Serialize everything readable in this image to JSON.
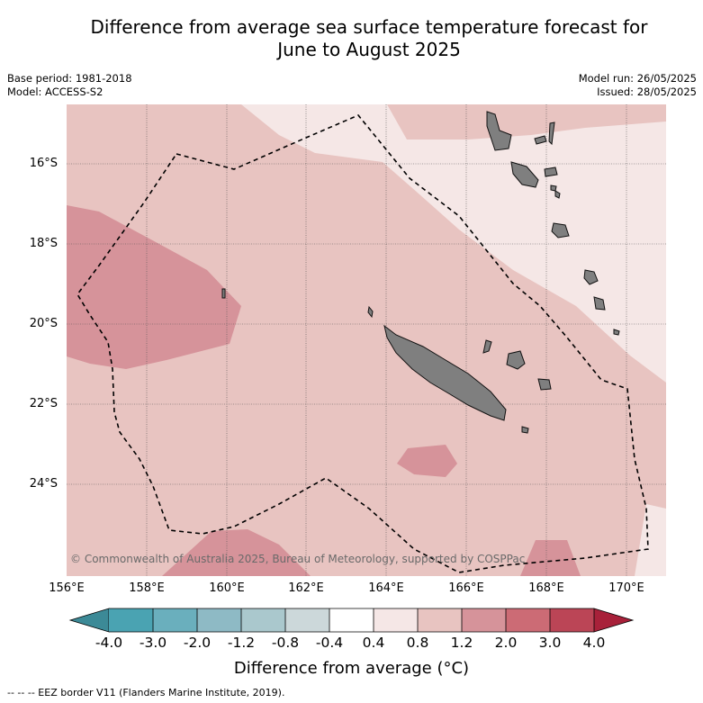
{
  "title_line1": "Difference from average sea surface temperature forecast for",
  "title_line2": "June to August 2025",
  "base_period": "Base period: 1981-2018",
  "model": "Model: ACCESS-S2",
  "model_run": "Model run: 26/05/2025",
  "issued": "Issued: 28/05/2025",
  "lat_labels": [
    "16°S",
    "18°S",
    "20°S",
    "22°S",
    "24°S"
  ],
  "lon_labels": [
    "156°E",
    "158°E",
    "160°E",
    "162°E",
    "164°E",
    "166°E",
    "168°E",
    "170°E"
  ],
  "copyright": "© Commonwealth of Australia 2025, Bureau of Meteorology, supported by COSPPac",
  "colorbar": {
    "ticks": [
      "-4.0",
      "-3.0",
      "-2.0",
      "-1.2",
      "-0.8",
      "-0.4",
      "0.4",
      "0.8",
      "1.2",
      "2.0",
      "3.0",
      "4.0"
    ],
    "title": "Difference from average (°C)",
    "colors": {
      "below_min": "#3c8a97",
      "neg_4_3": "#4aa3b2",
      "neg_3_2": "#6aafbd",
      "neg_2_12": "#8ebac5",
      "neg_12_08": "#aac8cd",
      "neg_08_04": "#ccd8da",
      "neutral": "#ffffff",
      "pos_04_08": "#f5e7e6",
      "pos_08_12": "#e8c4c1",
      "pos_12_2": "#d6939a",
      "pos_2_3": "#cc6b75",
      "pos_3_4": "#bb4556",
      "above_max": "#a8213a"
    }
  },
  "legend_footer": "--  --  -- EEZ border V11 (Flanders Marine Institute, 2019).",
  "land_color": "#7f7f7f"
}
